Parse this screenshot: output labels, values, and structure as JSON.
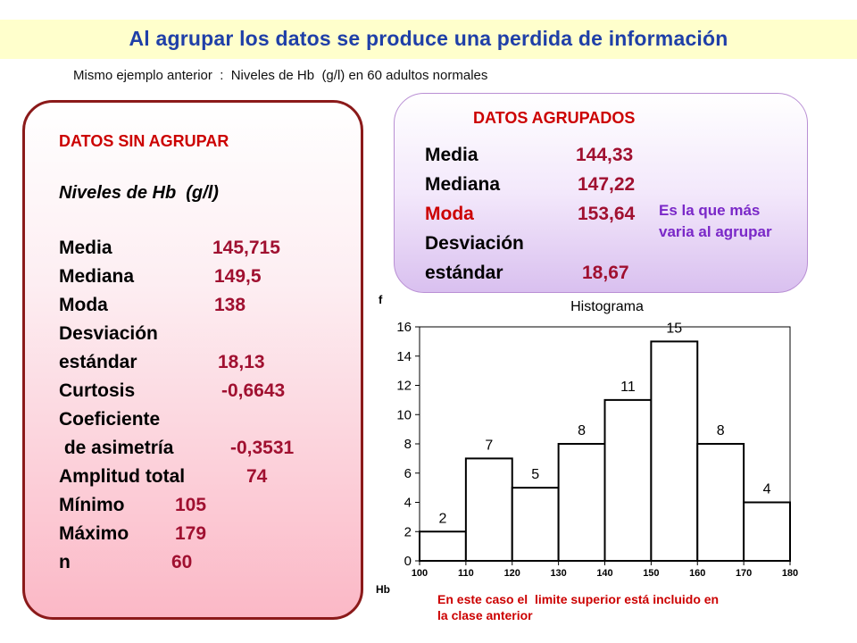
{
  "header": {
    "title": "Al agrupar los datos se  produce una perdida de información",
    "subtitle": "Mismo ejemplo anterior  :  Niveles de Hb  (g/l) en 60 adultos normales"
  },
  "ungrouped": {
    "heading": "DATOS SIN AGRUPAR",
    "variable": "Niveles de Hb  (g/l)",
    "stats": [
      {
        "label": "Media",
        "value": "145,715"
      },
      {
        "label": "Mediana",
        "value": "149,5"
      },
      {
        "label": "Moda",
        "value": "138"
      },
      {
        "label": "Desviación",
        "value": ""
      },
      {
        "label": "estándar",
        "value": "18,13"
      },
      {
        "label": "Curtosis",
        "value": "-0,6643"
      },
      {
        "label": "Coeficiente",
        "value": ""
      },
      {
        "label": " de asimetría",
        "value": "-0,3531"
      },
      {
        "label": "Amplitud total",
        "value": "74"
      },
      {
        "label": "Mínimo",
        "value": "105"
      },
      {
        "label": "Máximo",
        "value": "179"
      },
      {
        "label": "n",
        "value": "60"
      }
    ]
  },
  "grouped": {
    "heading": "DATOS AGRUPADOS",
    "stats": [
      {
        "label": "Media",
        "value": "144,33"
      },
      {
        "label": "Mediana",
        "value": "147,22"
      },
      {
        "label": "Moda",
        "value": "153,64"
      },
      {
        "label": "Desviación",
        "value": ""
      },
      {
        "label": "estándar",
        "value": "18,67"
      }
    ],
    "note_line1": "Es la que más",
    "note_line2": "varia al agrupar"
  },
  "footnote": {
    "line1": "En este caso el  limite superior está incluido en",
    "line2": "la clase anterior"
  },
  "colors": {
    "title": "#1f3fa8",
    "heading_red": "#cc0000",
    "value_crimson": "#a01030",
    "note_purple": "#7a28c8",
    "bar_border": "#000000",
    "bar_fill": "#ffffff"
  },
  "chart_data": {
    "type": "bar",
    "title": "Histograma",
    "xlabel": "Hb",
    "ylabel": "f",
    "bin_edges": [
      100,
      110,
      120,
      130,
      140,
      150,
      160,
      170,
      180
    ],
    "values": [
      2,
      7,
      5,
      8,
      11,
      15,
      8,
      4
    ],
    "ylim": [
      0,
      16
    ],
    "y_ticks": [
      0,
      2,
      4,
      6,
      8,
      10,
      12,
      14,
      16
    ],
    "x_ticks": [
      100,
      110,
      120,
      130,
      140,
      150,
      160,
      170,
      180
    ],
    "grid": false,
    "legend": "none"
  }
}
